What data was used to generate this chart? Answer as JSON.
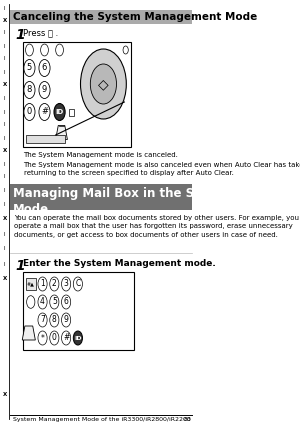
{
  "bg_color": "#ffffff",
  "section1": {
    "header_text": "Canceling the System Management Mode",
    "header_bg": "#aaaaaa",
    "header_fontsize": 7.5,
    "step_text": "Press ⓘ .",
    "caption1": "The System Management mode is canceled.",
    "caption2": "The System Management mode is also canceled even when Auto Clear has taken place,\nreturning to the screen specified to display after Auto Clear."
  },
  "section2": {
    "header_text": "Managing Mail Box in the System Management\nMode",
    "header_bg": "#707070",
    "header_text_color": "#ffffff",
    "header_fontsize": 8.5,
    "intro_text": "You can operate the mail box documents stored by other users. For example, you can\noperate a mail box that the user has forgotten its password, erase unnecessary\ndocuments, or get access to box documents of other users in case of need.",
    "step_text": "Enter the System Management mode."
  },
  "footer_text": "System Management Mode of the iR3300/iR2800/iR2200",
  "footer_page": "83",
  "footer_fontsize": 4.5
}
